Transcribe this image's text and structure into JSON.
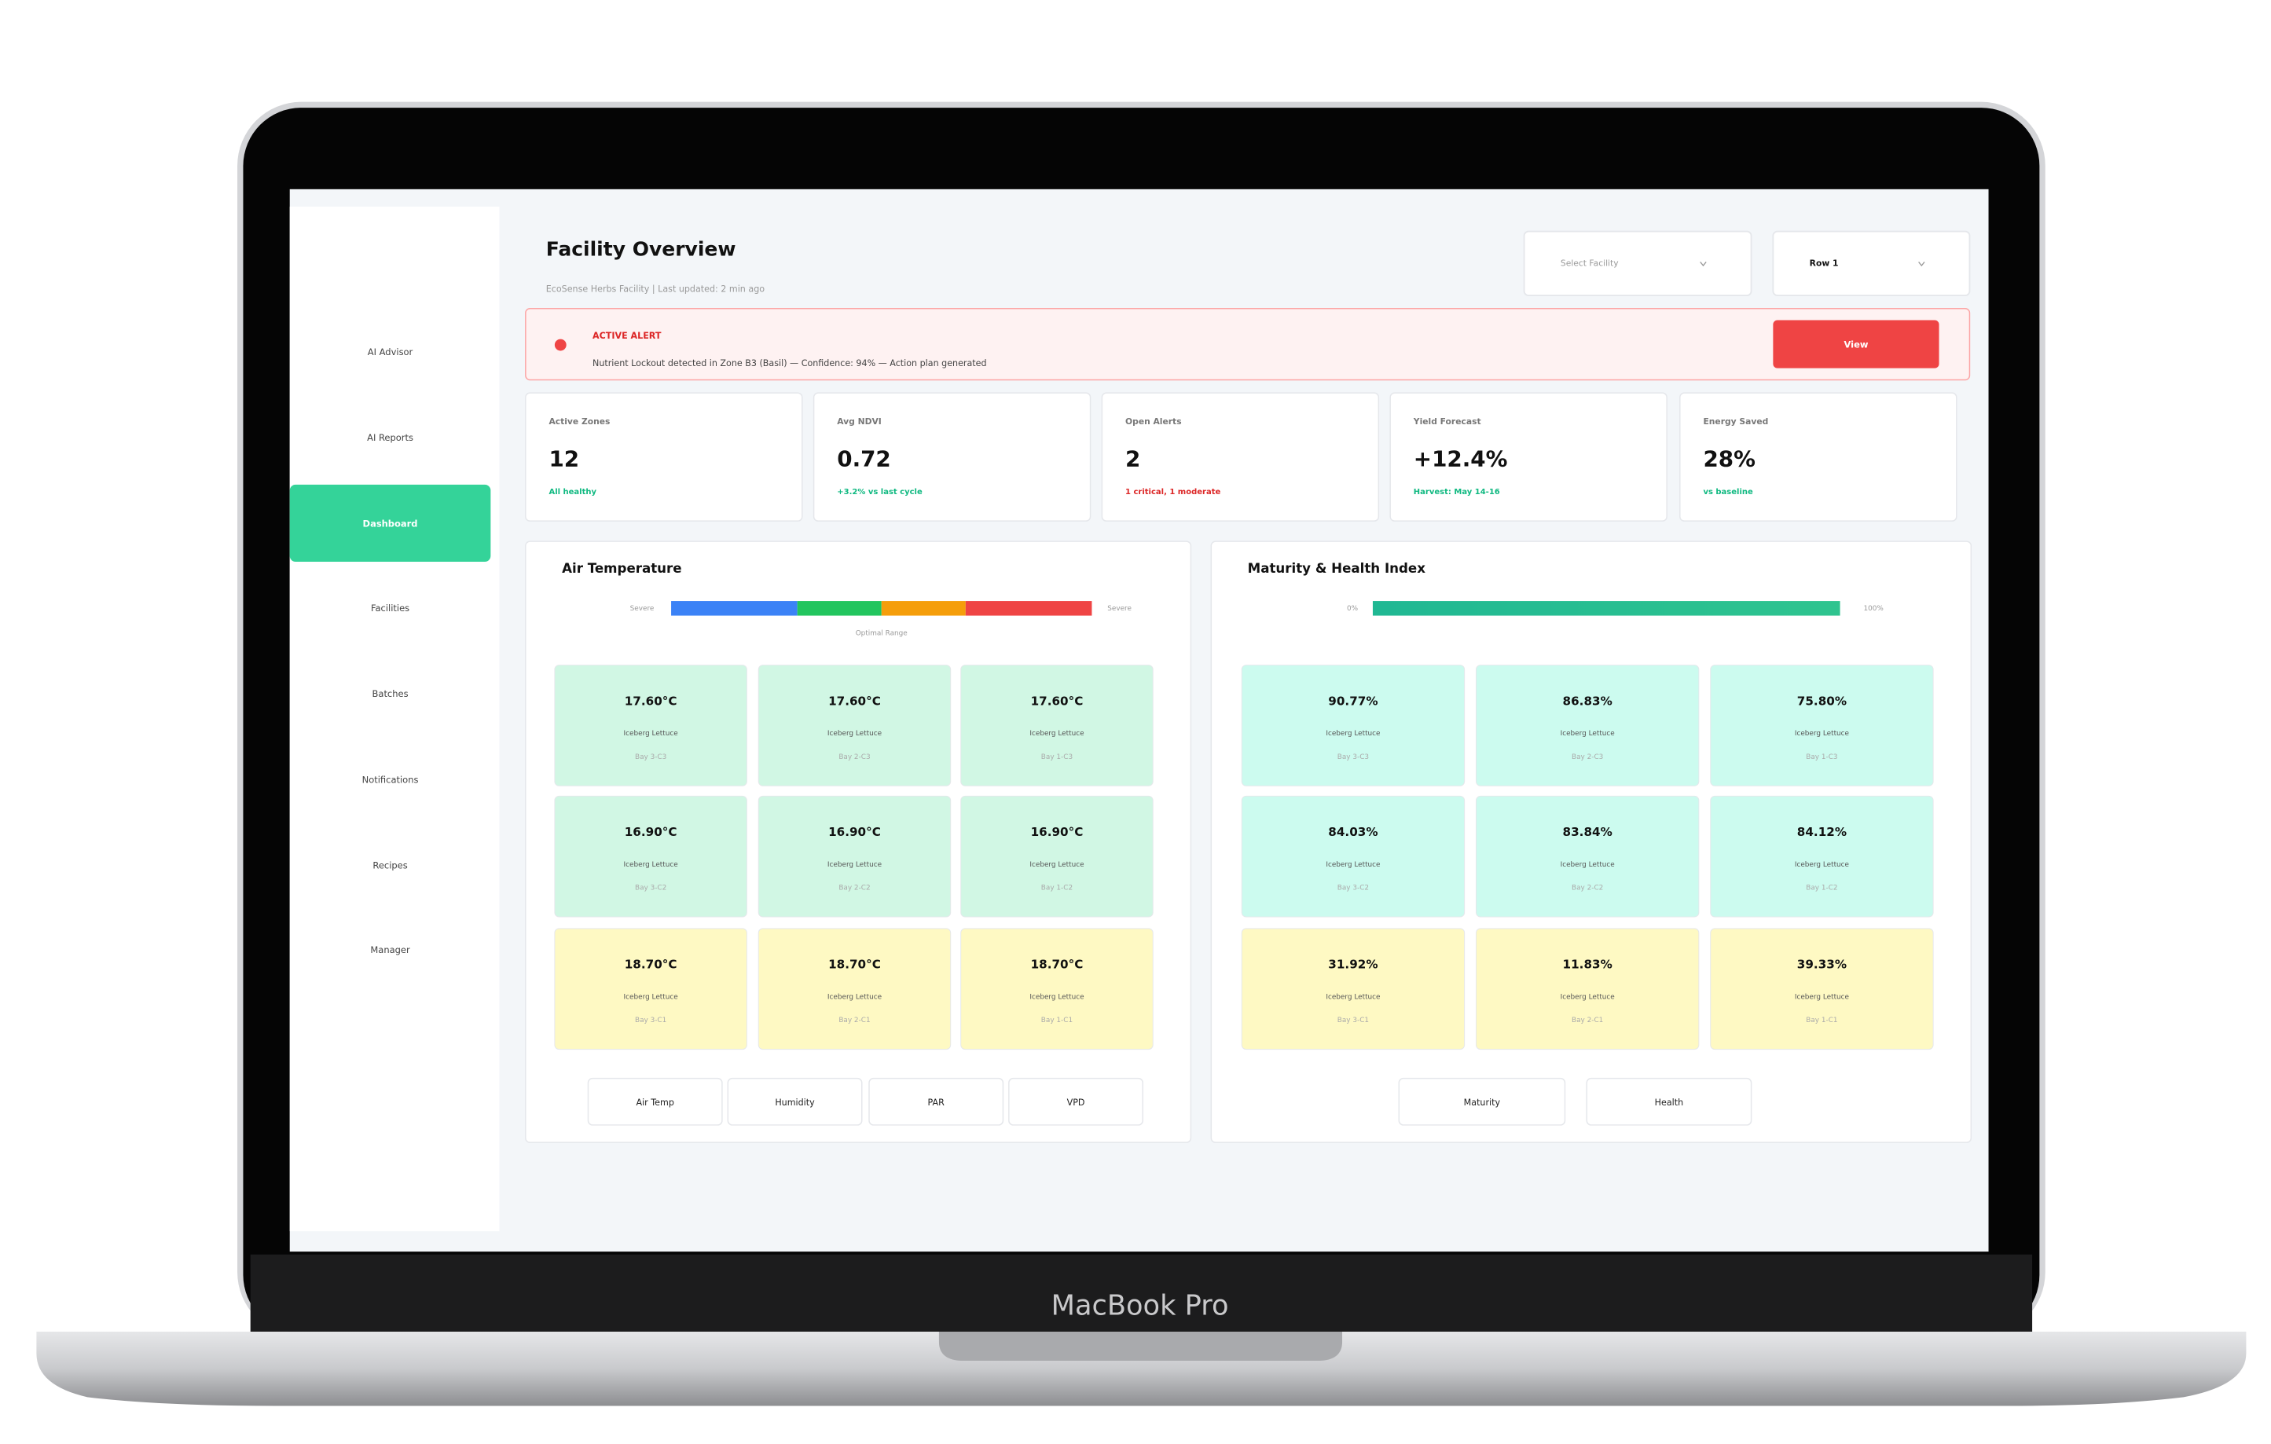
{
  "device": {
    "brand": "MacBook Pro"
  },
  "sidebar": {
    "items": [
      "AI Advisor",
      "AI Reports",
      "Dashboard",
      "Facilities",
      "Batches",
      "Notifications",
      "Recipes",
      "Manager"
    ],
    "active": 2
  },
  "header": {
    "title": "Facility Overview",
    "subtitle": "EcoSense Herbs Facility  |  Last updated: 2 min ago",
    "selects": [
      "Select Facility",
      "Row 1"
    ]
  },
  "alert": {
    "label": "ACTIVE ALERT",
    "message": "Nutrient Lockout detected in Zone B3 (Basil) — Confidence: 94% — Action plan generated",
    "button": "View"
  },
  "kpis": [
    {
      "label": "Active Zones",
      "value": "12",
      "note": "All healthy",
      "tone": "good"
    },
    {
      "label": "Avg NDVI",
      "value": "0.72",
      "note": "+3.2% vs last cycle",
      "tone": "good"
    },
    {
      "label": "Open Alerts",
      "value": "2",
      "note": "1 critical, 1 moderate",
      "tone": "bad"
    },
    {
      "label": "Yield Forecast",
      "value": "+12.4%",
      "note": "Harvest: May 14-16",
      "tone": "good"
    },
    {
      "label": "Energy Saved",
      "value": "28%",
      "note": "vs baseline",
      "tone": "good"
    }
  ],
  "panels": [
    {
      "title": "Air Temperature",
      "scale": {
        "left": "Severe",
        "right": "Severe",
        "caption": "Optimal Range",
        "style": "bands"
      },
      "rows": [
        {
          "tone": "green",
          "tiles": [
            {
              "value": "17.60°C",
              "crop": "Iceberg Lettuce",
              "bay": "Bay 3-C3"
            },
            {
              "value": "17.60°C",
              "crop": "Iceberg Lettuce",
              "bay": "Bay 2-C3"
            },
            {
              "value": "17.60°C",
              "crop": "Iceberg Lettuce",
              "bay": "Bay 1-C3"
            }
          ]
        },
        {
          "tone": "green",
          "tiles": [
            {
              "value": "16.90°C",
              "crop": "Iceberg Lettuce",
              "bay": "Bay 3-C2"
            },
            {
              "value": "16.90°C",
              "crop": "Iceberg Lettuce",
              "bay": "Bay 2-C2"
            },
            {
              "value": "16.90°C",
              "crop": "Iceberg Lettuce",
              "bay": "Bay 1-C2"
            }
          ]
        },
        {
          "tone": "yellow",
          "tiles": [
            {
              "value": "18.70°C",
              "crop": "Iceberg Lettuce",
              "bay": "Bay 3-C1"
            },
            {
              "value": "18.70°C",
              "crop": "Iceberg Lettuce",
              "bay": "Bay 2-C1"
            },
            {
              "value": "18.70°C",
              "crop": "Iceberg Lettuce",
              "bay": "Bay 1-C1"
            }
          ]
        }
      ],
      "tabs": [
        "Air Temp",
        "Humidity",
        "PAR",
        "VPD"
      ]
    },
    {
      "title": "Maturity & Health Index",
      "scale": {
        "left": "0%",
        "right": "100%",
        "style": "gradient"
      },
      "rows": [
        {
          "tone": "teal",
          "tiles": [
            {
              "value": "90.77%",
              "crop": "Iceberg Lettuce",
              "bay": "Bay 3-C3"
            },
            {
              "value": "86.83%",
              "crop": "Iceberg Lettuce",
              "bay": "Bay 2-C3"
            },
            {
              "value": "75.80%",
              "crop": "Iceberg Lettuce",
              "bay": "Bay 1-C3"
            }
          ]
        },
        {
          "tone": "teal",
          "tiles": [
            {
              "value": "84.03%",
              "crop": "Iceberg Lettuce",
              "bay": "Bay 3-C2"
            },
            {
              "value": "83.84%",
              "crop": "Iceberg Lettuce",
              "bay": "Bay 2-C2"
            },
            {
              "value": "84.12%",
              "crop": "Iceberg Lettuce",
              "bay": "Bay 1-C2"
            }
          ]
        },
        {
          "tone": "yellow",
          "tiles": [
            {
              "value": "31.92%",
              "crop": "Iceberg Lettuce",
              "bay": "Bay 3-C1"
            },
            {
              "value": "11.83%",
              "crop": "Iceberg Lettuce",
              "bay": "Bay 2-C1"
            },
            {
              "value": "39.33%",
              "crop": "Iceberg Lettuce",
              "bay": "Bay 1-C1"
            }
          ]
        }
      ],
      "tabs": [
        "Maturity",
        "Health"
      ]
    }
  ]
}
